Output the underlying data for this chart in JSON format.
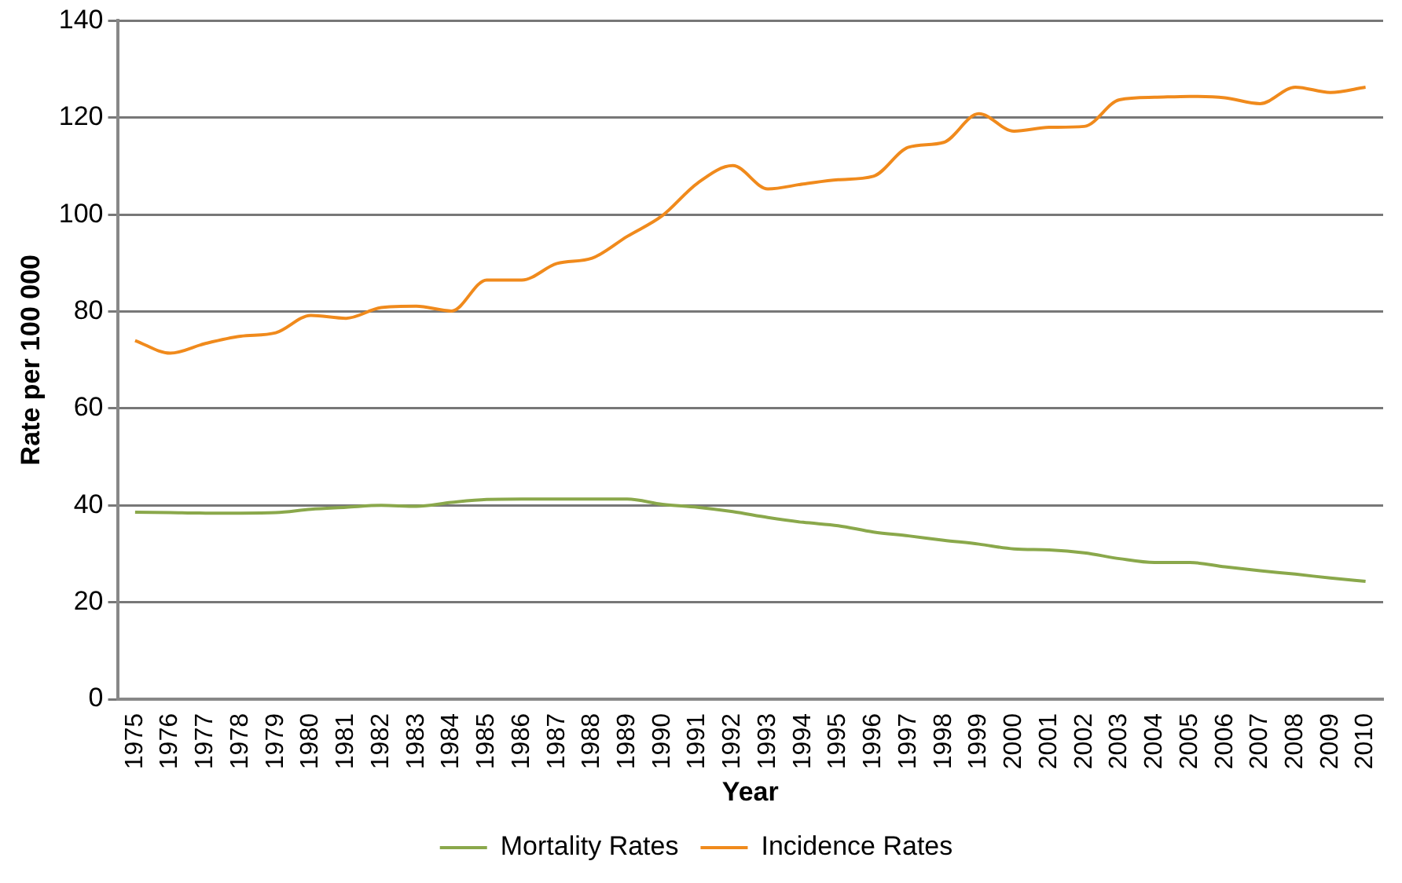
{
  "chart_data": {
    "type": "line",
    "xlabel": "Year",
    "ylabel": "Rate per 100 000",
    "categories": [
      "1975",
      "1976",
      "1977",
      "1978",
      "1979",
      "1980",
      "1981",
      "1982",
      "1983",
      "1984",
      "1985",
      "1986",
      "1987",
      "1988",
      "1989",
      "1990",
      "1991",
      "1992",
      "1993",
      "1994",
      "1995",
      "1996",
      "1997",
      "1998",
      "1999",
      "2000",
      "2001",
      "2002",
      "2003",
      "2004",
      "2005",
      "2006",
      "2007",
      "2008",
      "2009",
      "2010"
    ],
    "series": [
      {
        "name": "Mortality Rates",
        "color": "#8aa84b",
        "values": [
          38.6,
          38.5,
          38.4,
          38.4,
          38.5,
          39.2,
          39.6,
          40,
          39.8,
          40.6,
          41.2,
          41.3,
          41.3,
          41.3,
          41.3,
          40.2,
          39.6,
          38.7,
          37.5,
          36.5,
          35.8,
          34.5,
          33.7,
          32.8,
          32,
          31,
          30.8,
          30.2,
          29,
          28.2,
          28.2,
          27.3,
          26.5,
          25.8,
          25,
          24.3
        ]
      },
      {
        "name": "Incidence Rates",
        "color": "#f08a1c",
        "values": [
          74,
          71.4,
          73.4,
          74.9,
          75.6,
          79.2,
          78.6,
          80.8,
          81.1,
          80.1,
          86.5,
          86.5,
          89.9,
          91,
          95.5,
          99.8,
          106.5,
          110.1,
          105.3,
          106.3,
          107.2,
          107.9,
          113.9,
          114.9,
          120.8,
          117.2,
          118,
          118.2,
          123.7,
          124.2,
          124.4,
          124.1,
          122.9,
          126.3,
          125.2,
          126.3
        ]
      }
    ],
    "ylim": [
      0,
      140
    ],
    "yticks": [
      0,
      20,
      40,
      60,
      80,
      100,
      120,
      140
    ],
    "grid": "y",
    "legend": "bottom",
    "marker": "none",
    "line_style": "solid"
  }
}
